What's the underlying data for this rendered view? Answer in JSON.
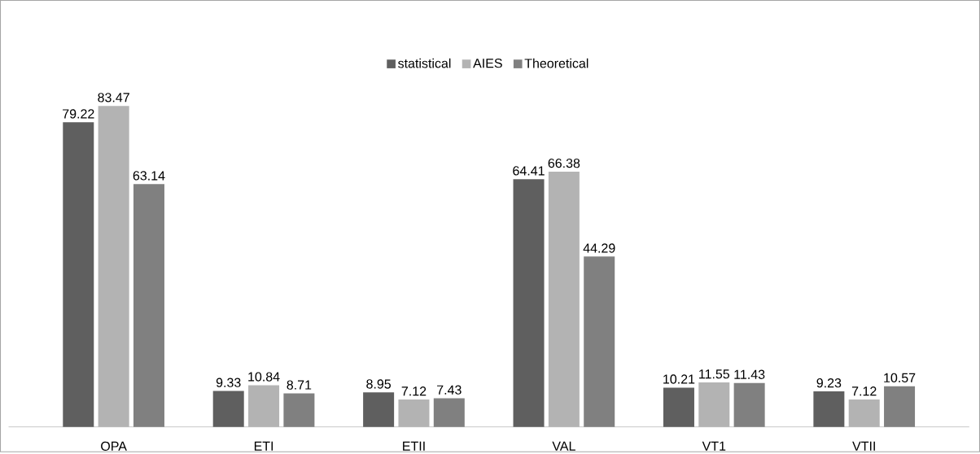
{
  "chart_data": {
    "type": "bar",
    "categories": [
      "OPA",
      "ETI",
      "ETII",
      "VAL",
      "VT1",
      "VTII"
    ],
    "series": [
      {
        "name": "statistical",
        "color": "#5f5f5f",
        "values": [
          79.22,
          9.33,
          8.95,
          64.41,
          10.21,
          9.23
        ]
      },
      {
        "name": "AIES",
        "color": "#b3b3b3",
        "values": [
          83.47,
          10.84,
          7.12,
          66.38,
          11.55,
          7.12
        ]
      },
      {
        "name": "Theoretical",
        "color": "#808080",
        "values": [
          63.14,
          8.71,
          7.43,
          44.29,
          11.43,
          10.57
        ]
      }
    ],
    "data_labels": true,
    "legend": "top"
  }
}
